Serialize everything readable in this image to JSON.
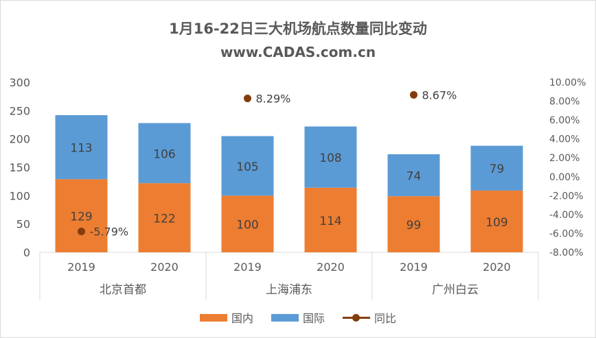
{
  "chart_data": {
    "type": "bar",
    "stacked": true,
    "title": "1月16-22日三大机场航点数量同比变动",
    "subtitle": "www.CADAS.com.cn",
    "groups": [
      {
        "name": "北京首都",
        "years": [
          "2019",
          "2020"
        ]
      },
      {
        "name": "上海浦东",
        "years": [
          "2019",
          "2020"
        ]
      },
      {
        "name": "广州白云",
        "years": [
          "2019",
          "2020"
        ]
      }
    ],
    "series": [
      {
        "name": "国内",
        "color": "#ed7d31",
        "values": [
          129,
          122,
          100,
          114,
          99,
          109
        ]
      },
      {
        "name": "国际",
        "color": "#5b9bd5",
        "values": [
          113,
          106,
          105,
          108,
          74,
          79
        ]
      }
    ],
    "yoy": {
      "name": "同比",
      "color": "#843c0c",
      "values": [
        -5.79,
        8.29,
        8.67
      ],
      "labels": [
        "-5.79%",
        "8.29%",
        "8.67%"
      ]
    },
    "y_left": {
      "min": 0,
      "max": 300,
      "ticks": [
        "0",
        "50",
        "100",
        "150",
        "200",
        "250",
        "300"
      ]
    },
    "y_right": {
      "min": -8,
      "max": 10,
      "ticks": [
        "-8.00%",
        "-6.00%",
        "-4.00%",
        "-2.00%",
        "0.00%",
        "2.00%",
        "4.00%",
        "6.00%",
        "8.00%",
        "10.00%"
      ]
    },
    "legend_position": "bottom",
    "grid": false
  }
}
